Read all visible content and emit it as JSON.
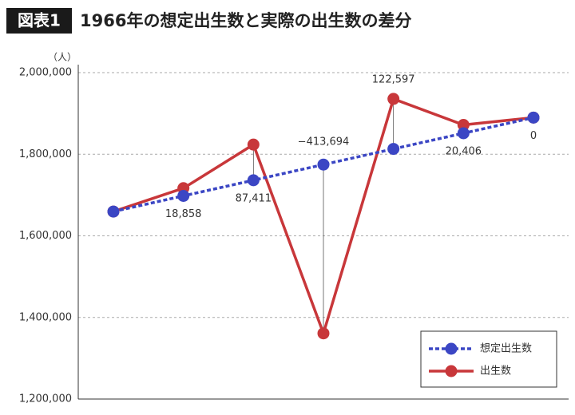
{
  "chart_data": {
    "type": "line",
    "badge": "図表1",
    "title": "1966年の想定出生数と実際の出生数の差分",
    "ylabel": "（人）",
    "categories": [
      null,
      null,
      null,
      null,
      null,
      null,
      null
    ],
    "series": [
      {
        "name": "想定出生数",
        "color": "#3b46c4",
        "dashed": true,
        "values": [
          1659521,
          1697903,
          1736286,
          1774668,
          1813050,
          1851433,
          1889815
        ]
      },
      {
        "name": "出生数",
        "color": "#c8373a",
        "dashed": false,
        "values": [
          1659521,
          1716761,
          1823697,
          1360974,
          1935647,
          1871839,
          1889815
        ]
      }
    ],
    "differences": [
      null,
      18858,
      87411,
      -413694,
      122597,
      20406,
      0
    ],
    "difference_labels": [
      null,
      "18,858",
      "87,411",
      "−413,694",
      "122,597",
      "20,406",
      "0"
    ],
    "ylim": [
      1200000,
      2000000
    ],
    "yticks": [
      {
        "value": 1200000,
        "label": "1,200,000"
      },
      {
        "value": 1400000,
        "label": "1,400,000"
      },
      {
        "value": 1600000,
        "label": "1,600,000"
      },
      {
        "value": 1800000,
        "label": "1,800,000"
      },
      {
        "value": 2000000,
        "label": "2,000,000"
      }
    ],
    "grid": true,
    "legend": "lower right"
  }
}
